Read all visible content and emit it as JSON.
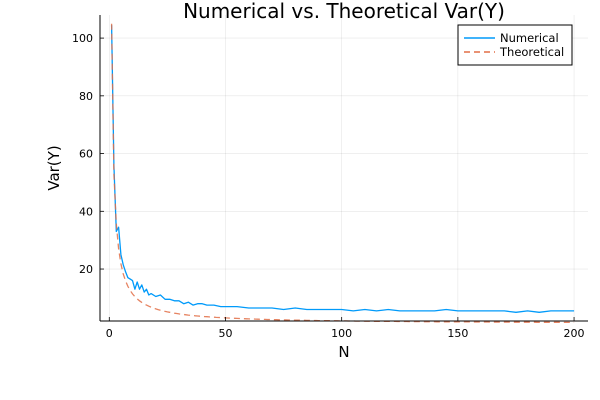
{
  "chart_data": {
    "type": "line",
    "title": "Numerical vs. Theoretical Var(Y)",
    "xlabel": "N",
    "ylabel": "Var(Y)",
    "xlim": [
      -4,
      206
    ],
    "ylim": [
      2,
      108
    ],
    "x_ticks": [
      0,
      50,
      100,
      150,
      200
    ],
    "y_ticks": [
      20,
      40,
      60,
      80,
      100
    ],
    "grid": true,
    "legend_position": "top-right",
    "series": [
      {
        "name": "Numerical",
        "color": "#009AFA",
        "style": "solid",
        "points": [
          [
            1,
            104.5
          ],
          [
            2,
            56
          ],
          [
            3,
            33
          ],
          [
            4,
            34.5
          ],
          [
            5,
            25
          ],
          [
            6,
            21.5
          ],
          [
            7,
            19
          ],
          [
            8,
            17
          ],
          [
            9,
            16.5
          ],
          [
            10,
            16
          ],
          [
            11,
            13
          ],
          [
            12,
            15.5
          ],
          [
            13,
            13
          ],
          [
            14,
            14.5
          ],
          [
            15,
            12
          ],
          [
            16,
            13
          ],
          [
            17,
            11
          ],
          [
            18,
            11.5
          ],
          [
            20,
            10.5
          ],
          [
            22,
            11
          ],
          [
            24,
            9.5
          ],
          [
            26,
            9.5
          ],
          [
            28,
            9
          ],
          [
            30,
            9
          ],
          [
            32,
            8
          ],
          [
            34,
            8.5
          ],
          [
            36,
            7.5
          ],
          [
            38,
            8
          ],
          [
            40,
            8
          ],
          [
            42,
            7.5
          ],
          [
            45,
            7.5
          ],
          [
            48,
            7
          ],
          [
            50,
            7
          ],
          [
            55,
            7
          ],
          [
            60,
            6.5
          ],
          [
            65,
            6.5
          ],
          [
            70,
            6.5
          ],
          [
            75,
            6
          ],
          [
            80,
            6.5
          ],
          [
            85,
            6
          ],
          [
            90,
            6
          ],
          [
            95,
            6
          ],
          [
            100,
            6
          ],
          [
            105,
            5.5
          ],
          [
            110,
            6
          ],
          [
            115,
            5.5
          ],
          [
            120,
            6
          ],
          [
            125,
            5.5
          ],
          [
            130,
            5.5
          ],
          [
            135,
            5.5
          ],
          [
            140,
            5.5
          ],
          [
            145,
            6
          ],
          [
            150,
            5.5
          ],
          [
            155,
            5.5
          ],
          [
            160,
            5.5
          ],
          [
            165,
            5.5
          ],
          [
            170,
            5.5
          ],
          [
            175,
            5
          ],
          [
            180,
            5.5
          ],
          [
            185,
            5
          ],
          [
            190,
            5.5
          ],
          [
            195,
            5.5
          ],
          [
            200,
            5.5
          ]
        ]
      },
      {
        "name": "Theoretical",
        "color": "#E26F46",
        "style": "dashed",
        "formula": "1 + 104/N",
        "n_range": [
          1,
          200
        ]
      }
    ]
  }
}
